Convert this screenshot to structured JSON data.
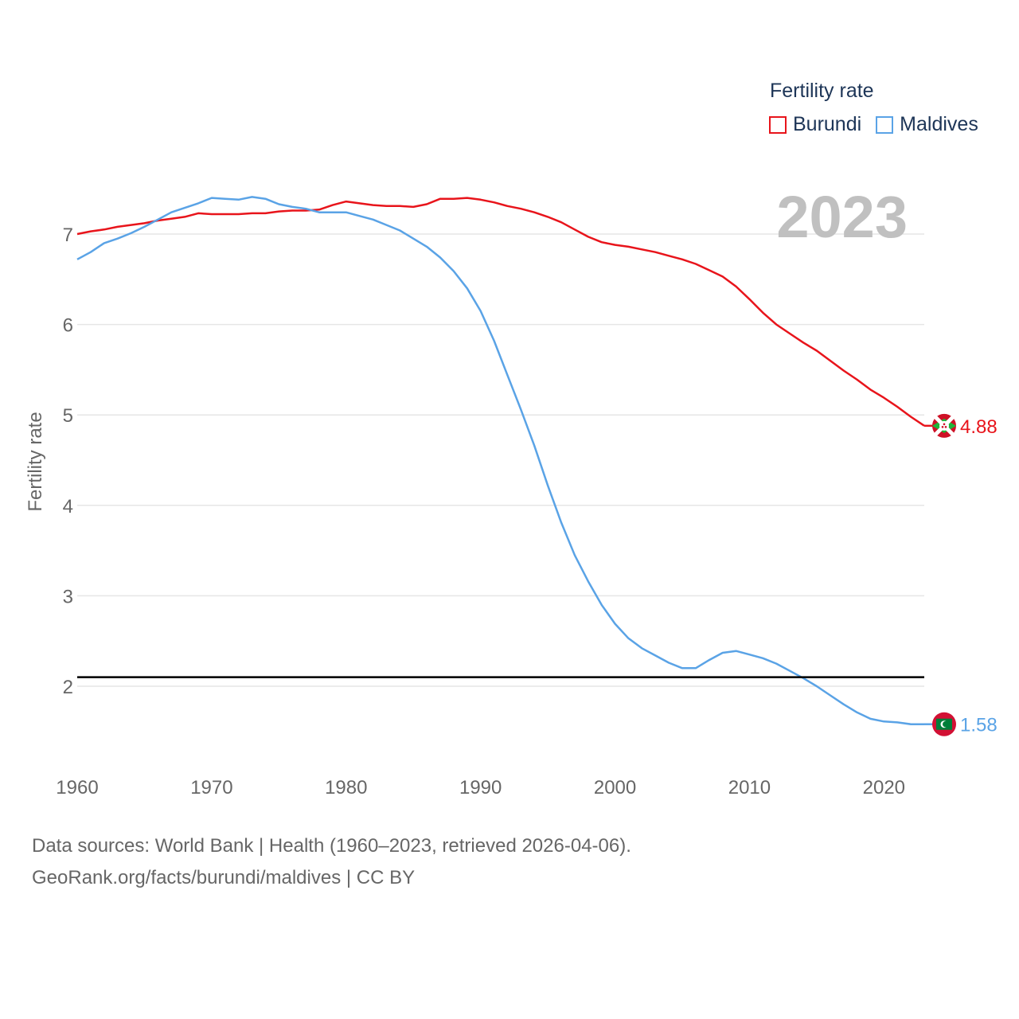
{
  "chart_data": {
    "type": "line",
    "title": "",
    "ylabel": "Fertility rate",
    "xlabel": "",
    "xlim": [
      1960,
      2023
    ],
    "ylim": [
      1.1,
      7.9
    ],
    "x_ticks": [
      1960,
      1970,
      1980,
      1990,
      2000,
      2010,
      2020
    ],
    "y_ticks": [
      2,
      3,
      4,
      5,
      6,
      7
    ],
    "reference_line": 2.1,
    "year_watermark": "2023",
    "legend_title": "Fertility rate",
    "x": [
      1960,
      1961,
      1962,
      1963,
      1964,
      1965,
      1966,
      1967,
      1968,
      1969,
      1970,
      1971,
      1972,
      1973,
      1974,
      1975,
      1976,
      1977,
      1978,
      1979,
      1980,
      1981,
      1982,
      1983,
      1984,
      1985,
      1986,
      1987,
      1988,
      1989,
      1990,
      1991,
      1992,
      1993,
      1994,
      1995,
      1996,
      1997,
      1998,
      1999,
      2000,
      2001,
      2002,
      2003,
      2004,
      2005,
      2006,
      2007,
      2008,
      2009,
      2010,
      2011,
      2012,
      2013,
      2014,
      2015,
      2016,
      2017,
      2018,
      2019,
      2020,
      2021,
      2022,
      2023
    ],
    "series": [
      {
        "name": "Burundi",
        "color": "#e8141b",
        "end_label": "4.88",
        "values": [
          7.0,
          7.03,
          7.05,
          7.08,
          7.1,
          7.12,
          7.15,
          7.17,
          7.19,
          7.23,
          7.22,
          7.22,
          7.22,
          7.23,
          7.23,
          7.25,
          7.26,
          7.26,
          7.27,
          7.32,
          7.36,
          7.34,
          7.32,
          7.31,
          7.31,
          7.3,
          7.33,
          7.39,
          7.39,
          7.4,
          7.38,
          7.35,
          7.31,
          7.28,
          7.24,
          7.19,
          7.13,
          7.05,
          6.97,
          6.91,
          6.88,
          6.86,
          6.83,
          6.8,
          6.76,
          6.72,
          6.67,
          6.6,
          6.53,
          6.42,
          6.28,
          6.13,
          6.0,
          5.9,
          5.8,
          5.71,
          5.6,
          5.49,
          5.39,
          5.28,
          5.19,
          5.09,
          4.98,
          4.88
        ]
      },
      {
        "name": "Maldives",
        "color": "#5aa3e6",
        "end_label": "1.58",
        "values": [
          6.72,
          6.8,
          6.9,
          6.95,
          7.01,
          7.08,
          7.16,
          7.24,
          7.29,
          7.34,
          7.4,
          7.39,
          7.38,
          7.41,
          7.39,
          7.33,
          7.3,
          7.28,
          7.24,
          7.24,
          7.24,
          7.2,
          7.16,
          7.1,
          7.04,
          6.95,
          6.86,
          6.74,
          6.59,
          6.4,
          6.15,
          5.82,
          5.44,
          5.06,
          4.66,
          4.22,
          3.81,
          3.45,
          3.16,
          2.9,
          2.69,
          2.53,
          2.42,
          2.34,
          2.26,
          2.2,
          2.2,
          2.29,
          2.37,
          2.39,
          2.35,
          2.31,
          2.25,
          2.17,
          2.09,
          2.0,
          1.9,
          1.8,
          1.71,
          1.64,
          1.61,
          1.6,
          1.58,
          1.58
        ]
      }
    ]
  },
  "source": {
    "line1": "Data sources: World Bank | Health (1960–2023, retrieved 2026-04-06).",
    "line2": "GeoRank.org/facts/burundi/maldives | CC BY"
  },
  "flags": {
    "burundi": "burundi-flag-icon",
    "maldives": "maldives-flag-icon"
  }
}
